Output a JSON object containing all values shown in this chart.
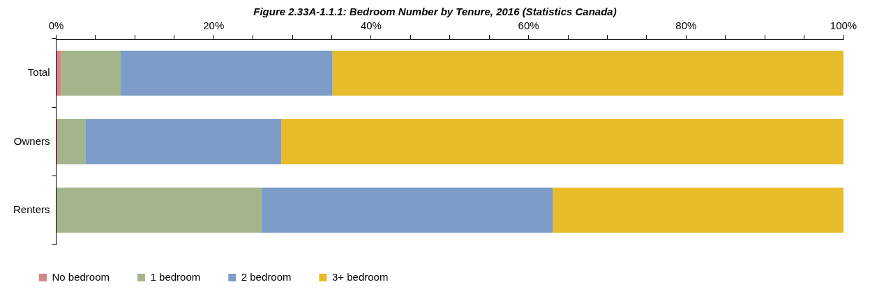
{
  "chart_data": {
    "type": "bar",
    "orientation": "horizontal",
    "stacked": true,
    "title": "Figure 2.33A-1.1.1: Bedroom Number by Tenure, 2016 (Statistics Canada)",
    "categories": [
      "Total",
      "Owners",
      "Renters"
    ],
    "series": [
      {
        "name": "No bedroom",
        "color": "#d4868c",
        "values": [
          0.7,
          0.2,
          0
        ]
      },
      {
        "name": "1 bedroom",
        "color": "#a3b58b",
        "values": [
          7.5,
          3.5,
          26.1
        ]
      },
      {
        "name": "2 bedroom",
        "color": "#7d9dc8",
        "values": [
          26.9,
          24.9,
          37.0
        ]
      },
      {
        "name": "3+ bedroom",
        "color": "#e8bb2a",
        "values": [
          64.9,
          71.4,
          36.9
        ]
      }
    ],
    "xlim": [
      0,
      100
    ],
    "xticks": [
      {
        "value": 0,
        "label": "0%"
      },
      {
        "value": 5,
        "label": null
      },
      {
        "value": 10,
        "label": null
      },
      {
        "value": 15,
        "label": null
      },
      {
        "value": 20,
        "label": "20%"
      },
      {
        "value": 25,
        "label": null
      },
      {
        "value": 30,
        "label": null
      },
      {
        "value": 35,
        "label": null
      },
      {
        "value": 40,
        "label": "40%"
      },
      {
        "value": 45,
        "label": null
      },
      {
        "value": 50,
        "label": null
      },
      {
        "value": 55,
        "label": null
      },
      {
        "value": 60,
        "label": "60%"
      },
      {
        "value": 65,
        "label": null
      },
      {
        "value": 70,
        "label": null
      },
      {
        "value": 75,
        "label": null
      },
      {
        "value": 80,
        "label": "80%"
      },
      {
        "value": 85,
        "label": null
      },
      {
        "value": 90,
        "label": null
      },
      {
        "value": 95,
        "label": null
      },
      {
        "value": 100,
        "label": "100%"
      }
    ],
    "grid": false,
    "legend": "bottom"
  }
}
